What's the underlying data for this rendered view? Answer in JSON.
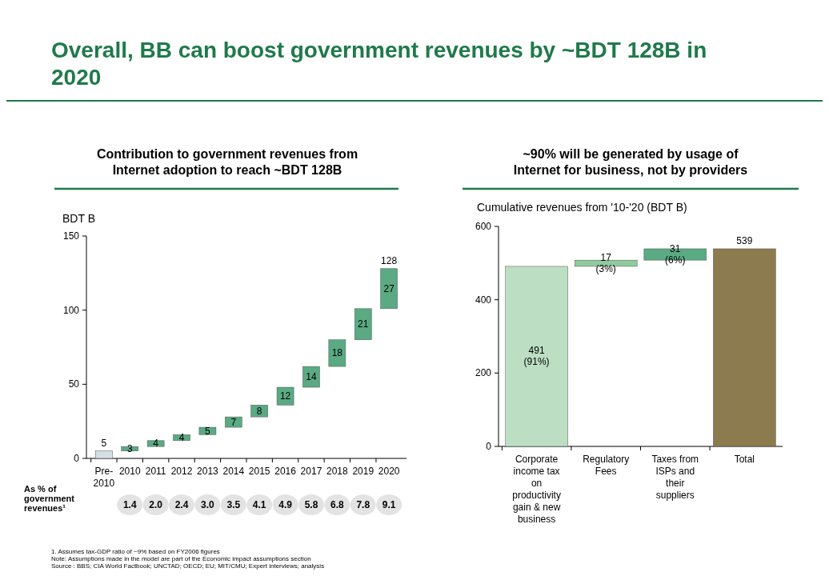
{
  "chart_data": [
    {
      "type": "bar",
      "title": "Overall, BB can boost government revenues by ~BDT 128B in 2020",
      "subtitle": "Contribution to government revenues from Internet adoption to reach ~BDT 128B",
      "ylabel": "BDT B",
      "categories": [
        "Pre-2010",
        "2010",
        "2011",
        "2012",
        "2013",
        "2014",
        "2015",
        "2016",
        "2017",
        "2018",
        "2019",
        "2020"
      ],
      "values": [
        5,
        3,
        4,
        4,
        5,
        7,
        8,
        12,
        14,
        18,
        21,
        27
      ],
      "base": [
        0,
        5,
        8,
        12,
        16,
        21,
        28,
        36,
        48,
        62,
        80,
        101
      ],
      "colors": [
        "#d3dfe3",
        "#5aaa83",
        "#5aaa83",
        "#5aaa83",
        "#5aaa83",
        "#5aaa83",
        "#5aaa83",
        "#5aaa83",
        "#5aaa83",
        "#5aaa83",
        "#5aaa83",
        "#5aaa83"
      ],
      "ylim": [
        0,
        150
      ],
      "yticks": [
        0,
        50,
        100,
        150
      ],
      "grid": false,
      "data_labels": true,
      "annotations": [
        {
          "text": "128",
          "x": "2020",
          "y": 128
        },
        "As % of government revenues¹",
        "1.4",
        "2.0",
        "2.4",
        "3.0",
        "3.5",
        "4.1",
        "4.9",
        "5.8",
        "6.8",
        "7.8",
        "9.1",
        "1. Assumes tax-GDP ratio of ~9% based on FY2006 figures",
        "Note: Assumptions made in the model are part of the Economic impact assumptions section",
        "Source : BBS; CIA World Factbook; UNCTAD; OECD; EU; MIT/CMU; Expert interviews; analysis"
      ]
    },
    {
      "type": "bar",
      "title": "~90% will be generated by usage of Internet for business, not by providers",
      "ylabel": "Cumulative revenues from '10-'20 (BDT B)",
      "categories": [
        "Corporate income tax on productivity gain & new business",
        "Regulatory Fees",
        "Taxes from ISPs and their suppliers",
        "Total"
      ],
      "values": [
        491,
        17,
        31,
        539
      ],
      "base": [
        0,
        491,
        508,
        0
      ],
      "colors": [
        "#bcdfc3",
        "#8ecb9f",
        "#5aaa83",
        "#8c7b4f"
      ],
      "value_labels": [
        "491\n(91%)",
        "17\n(3%)",
        "31\n(6%)",
        "539"
      ],
      "ylim": [
        0,
        600
      ],
      "yticks": [
        0,
        200,
        400,
        600
      ],
      "grid": false
    }
  ]
}
